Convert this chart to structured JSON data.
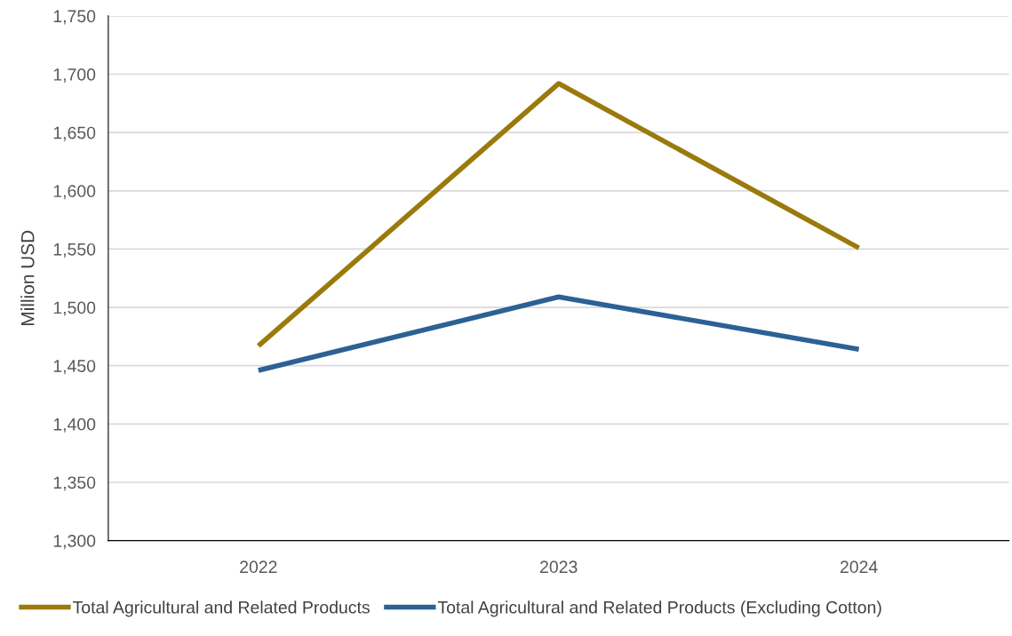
{
  "chart_data": {
    "type": "line",
    "ylabel": "Million USD",
    "categories": [
      "2022",
      "2023",
      "2024"
    ],
    "series": [
      {
        "name": "Total Agricultural and Related Products",
        "color": "#9a7a0c",
        "values": [
          1467,
          1692,
          1551
        ]
      },
      {
        "name": "Total Agricultural and Related Products (Excluding Cotton)",
        "color": "#2c6194",
        "values": [
          1446,
          1509,
          1464
        ]
      }
    ],
    "ylim": [
      1300,
      1750
    ],
    "yticks": [
      {
        "value": 1300,
        "label": "1,300"
      },
      {
        "value": 1350,
        "label": "1,350"
      },
      {
        "value": 1400,
        "label": "1,400"
      },
      {
        "value": 1450,
        "label": "1,450"
      },
      {
        "value": 1500,
        "label": "1,500"
      },
      {
        "value": 1550,
        "label": "1,550"
      },
      {
        "value": 1600,
        "label": "1,600"
      },
      {
        "value": 1650,
        "label": "1,650"
      },
      {
        "value": 1700,
        "label": "1,700"
      },
      {
        "value": 1750,
        "label": "1,750"
      }
    ],
    "grid": "y",
    "legend": "bottom",
    "marker": "none",
    "line_style": "solid"
  }
}
